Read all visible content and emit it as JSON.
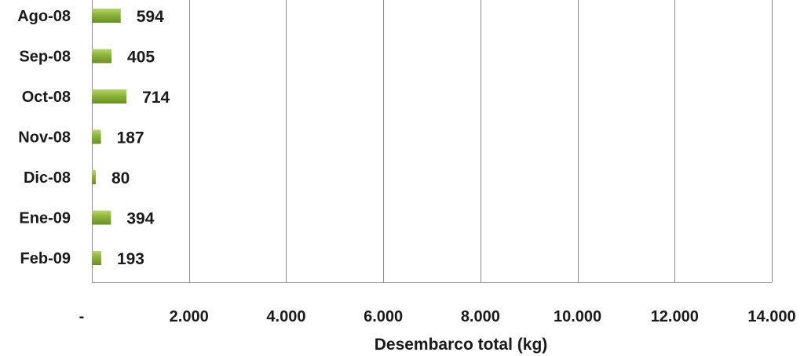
{
  "chart_data": {
    "type": "bar",
    "orientation": "horizontal",
    "categories": [
      "Ago-08",
      "Sep-08",
      "Oct-08",
      "Nov-08",
      "Dic-08",
      "Ene-09",
      "Feb-09"
    ],
    "values": [
      594,
      405,
      714,
      187,
      80,
      394,
      193
    ],
    "value_labels": [
      "594",
      "405",
      "714",
      "187",
      "80",
      "394",
      "193"
    ],
    "xlabel": "Desembarco total (kg)",
    "ylabel": "",
    "xlim": [
      0,
      14000
    ],
    "x_ticks": [
      0,
      2000,
      4000,
      6000,
      8000,
      10000,
      12000,
      14000
    ],
    "x_tick_labels": [
      "-",
      "2.000",
      "4.000",
      "6.000",
      "8.000",
      "10.000",
      "12.000",
      "14.000"
    ],
    "grid": "vertical",
    "legend": "none",
    "bar_color": "#8ab43a",
    "bar_color_light": "#b5d56a",
    "bar_color_dark": "#6a8f22"
  }
}
